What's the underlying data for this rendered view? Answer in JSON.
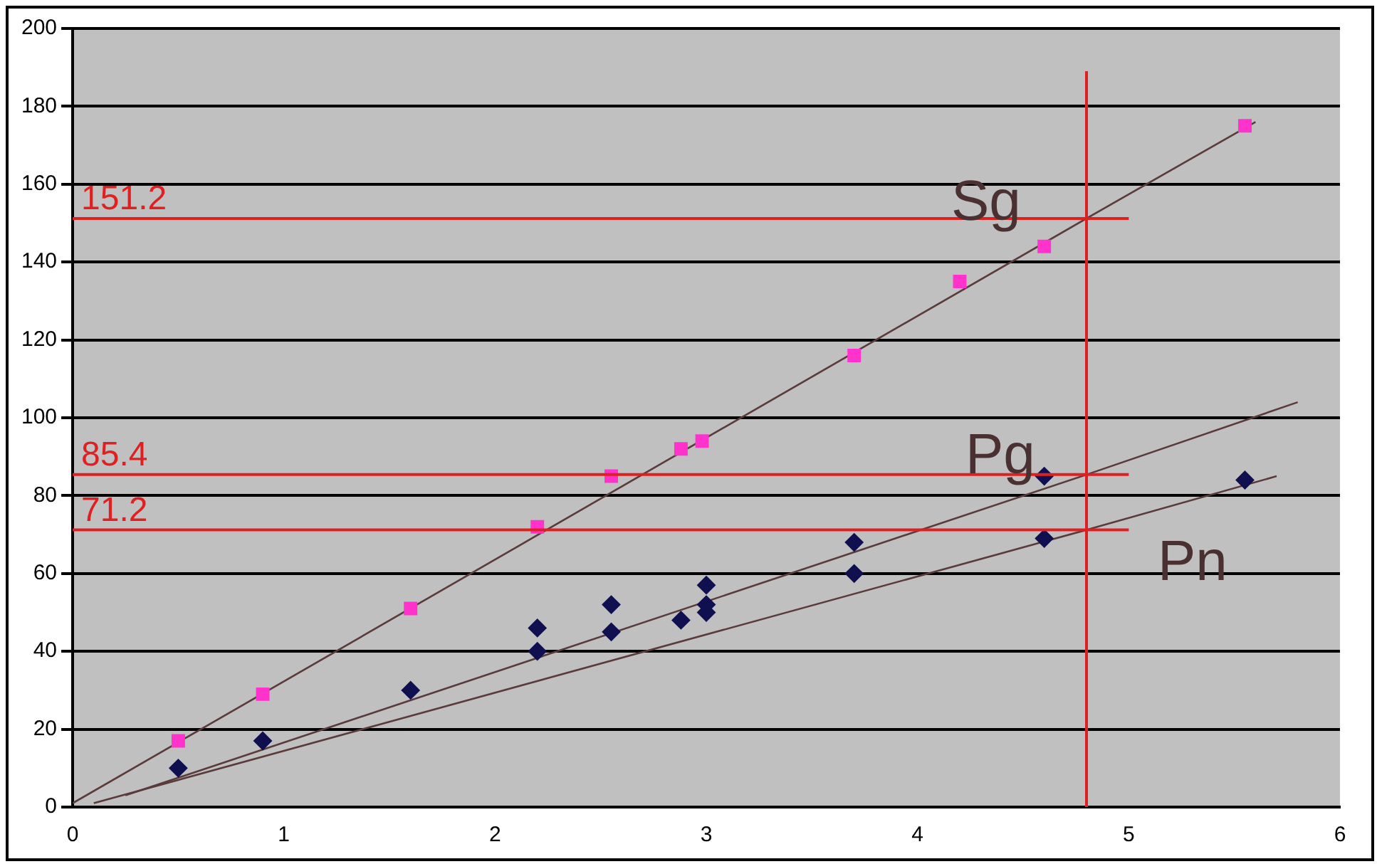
{
  "chart_data": {
    "type": "scatter",
    "xlim": [
      0,
      6
    ],
    "ylim": [
      0,
      200
    ],
    "xticks": [
      0,
      1,
      2,
      3,
      4,
      5,
      6
    ],
    "yticks": [
      0,
      20,
      40,
      60,
      80,
      100,
      120,
      140,
      160,
      180,
      200
    ],
    "grid": "y",
    "legend": false,
    "series": [
      {
        "marker": "square",
        "color": "#ff33cc",
        "x": [
          0.5,
          0.9,
          1.6,
          2.2,
          2.55,
          2.88,
          2.98,
          3.7,
          4.2,
          4.6,
          5.55
        ],
        "values": [
          17,
          29,
          51,
          72,
          85,
          92,
          94,
          116,
          135,
          144,
          175
        ]
      },
      {
        "marker": "diamond",
        "color": "#101050",
        "x": [
          0.5,
          0.9,
          1.6,
          2.2,
          2.2,
          2.55,
          2.55,
          2.88,
          3.0,
          3.0,
          3.0,
          3.7,
          3.7,
          4.6,
          4.6,
          5.55
        ],
        "values": [
          10,
          17,
          30,
          40,
          46,
          52,
          45,
          48,
          50,
          57,
          52,
          68,
          60,
          85,
          69,
          84
        ]
      },
      {
        "type": "line",
        "name": "Sg",
        "marker": "none",
        "color": "#5a3a3a",
        "x": [
          0,
          4.8,
          5.6
        ],
        "values": [
          1,
          151.2,
          176
        ]
      },
      {
        "type": "line",
        "name": "Pg",
        "marker": "none",
        "color": "#5a3a3a",
        "x": [
          0.25,
          4.8,
          5.8
        ],
        "values": [
          3,
          85.4,
          104
        ]
      },
      {
        "type": "line",
        "name": "Pn",
        "marker": "none",
        "color": "#5a3a3a",
        "x": [
          0.1,
          4.8,
          5.7
        ],
        "values": [
          1,
          71.2,
          85
        ]
      }
    ],
    "ref_lines": [
      {
        "axis": "y",
        "value": 151.2,
        "label": "151.2",
        "color": "#e02020"
      },
      {
        "axis": "y",
        "value": 85.4,
        "label": "85.4",
        "color": "#e02020"
      },
      {
        "axis": "y",
        "value": 71.2,
        "label": "71.2",
        "color": "#e02020"
      },
      {
        "axis": "x",
        "value": 4.8,
        "color": "#e02020"
      }
    ]
  }
}
